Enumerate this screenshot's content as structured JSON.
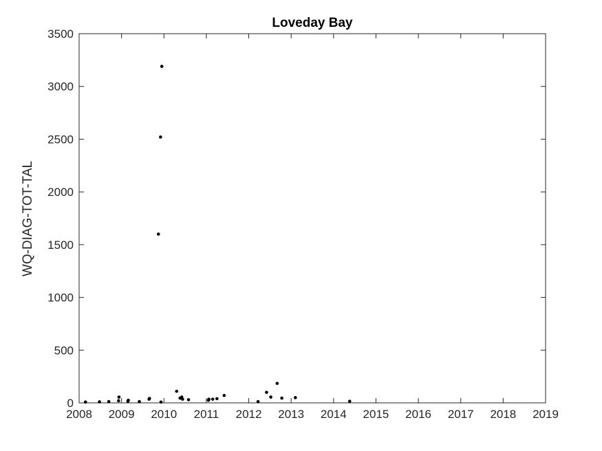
{
  "chart_data": {
    "type": "scatter",
    "title": "Loveday Bay",
    "xlabel": "",
    "ylabel": "WQ-DIAG-TOT-TAL",
    "xlim": [
      2008,
      2019
    ],
    "ylim": [
      0,
      3500
    ],
    "xticks": [
      "2008",
      "2009",
      "2010",
      "2011",
      "2012",
      "2013",
      "2014",
      "2015",
      "2016",
      "2017",
      "2018",
      "2019"
    ],
    "yticks": [
      "0",
      "500",
      "1000",
      "1500",
      "2000",
      "2500",
      "3000",
      "3500"
    ],
    "grid": false,
    "marker_color": "#000000",
    "points": [
      {
        "x": 2008.15,
        "y": 8
      },
      {
        "x": 2008.48,
        "y": 10
      },
      {
        "x": 2008.7,
        "y": 12
      },
      {
        "x": 2008.93,
        "y": 20
      },
      {
        "x": 2008.94,
        "y": 55
      },
      {
        "x": 2009.15,
        "y": 15
      },
      {
        "x": 2009.16,
        "y": 25
      },
      {
        "x": 2009.42,
        "y": 12
      },
      {
        "x": 2009.65,
        "y": 35
      },
      {
        "x": 2009.66,
        "y": 42
      },
      {
        "x": 2009.87,
        "y": 1600
      },
      {
        "x": 2009.92,
        "y": 2520
      },
      {
        "x": 2009.95,
        "y": 3190
      },
      {
        "x": 2009.93,
        "y": 8
      },
      {
        "x": 2010.3,
        "y": 110
      },
      {
        "x": 2010.38,
        "y": 45
      },
      {
        "x": 2010.42,
        "y": 55
      },
      {
        "x": 2010.44,
        "y": 35
      },
      {
        "x": 2010.58,
        "y": 30
      },
      {
        "x": 2011.05,
        "y": 25
      },
      {
        "x": 2011.06,
        "y": 35
      },
      {
        "x": 2011.15,
        "y": 35
      },
      {
        "x": 2011.25,
        "y": 40
      },
      {
        "x": 2011.42,
        "y": 70
      },
      {
        "x": 2012.22,
        "y": 12
      },
      {
        "x": 2012.42,
        "y": 100
      },
      {
        "x": 2012.52,
        "y": 55
      },
      {
        "x": 2012.67,
        "y": 185
      },
      {
        "x": 2012.78,
        "y": 45
      },
      {
        "x": 2013.1,
        "y": 50
      },
      {
        "x": 2014.38,
        "y": 15
      }
    ]
  }
}
